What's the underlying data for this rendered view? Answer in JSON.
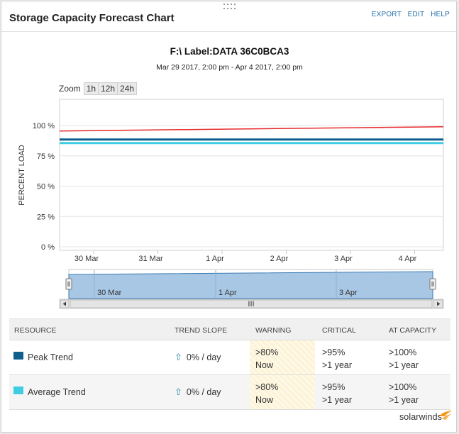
{
  "widget": {
    "title": "Storage Capacity Forecast Chart",
    "actions": [
      "EXPORT",
      "EDIT",
      "HELP"
    ]
  },
  "chart_data": {
    "type": "line",
    "title": "F:\\ Label:DATA 36C0BCA3",
    "subtitle": "Mar 29 2017, 2:00 pm - Apr 4 2017, 2:00 pm",
    "ylabel": "PERCENT LOAD",
    "yticks": [
      "100 %",
      "75 %",
      "50 %",
      "25 %",
      "0 %"
    ],
    "ylim": [
      0,
      100
    ],
    "xticks": [
      "30 Mar",
      "31 Mar",
      "1 Apr",
      "2 Apr",
      "3 Apr",
      "4 Apr"
    ],
    "grid": true,
    "series": [
      {
        "color": "#e8292b",
        "x": [
          "Mar 29 2017, 2:00 pm",
          "Apr 4 2017, 2:00 pm"
        ],
        "values": [
          95.5,
          99
        ]
      },
      {
        "name": "Peak Trend",
        "color": "#0f5f8c",
        "x": [
          "Mar 29 2017, 2:00 pm",
          "Apr 4 2017, 2:00 pm"
        ],
        "values": [
          88.5,
          88.5
        ]
      },
      {
        "name": "Average Trend",
        "color": "#3fcde4",
        "x": [
          "Mar 29 2017, 2:00 pm",
          "Apr 4 2017, 2:00 pm"
        ],
        "values": [
          85.5,
          85.5
        ]
      }
    ]
  },
  "zoom": {
    "label": "Zoom",
    "buttons": [
      "1h",
      "12h",
      "24h"
    ]
  },
  "navigator": {
    "labels": [
      "30 Mar",
      "1 Apr",
      "3 Apr"
    ],
    "scrollbar_grip": "III"
  },
  "table": {
    "headers": [
      "RESOURCE",
      "TREND SLOPE",
      "WARNING",
      "CRITICAL",
      "AT CAPACITY"
    ],
    "rows": [
      {
        "resource": "Peak Trend",
        "color": "#0f5f8c",
        "slope": "0% / day",
        "warning": [
          ">80%",
          "Now"
        ],
        "critical": [
          ">95%",
          ">1 year"
        ],
        "capacity": [
          ">100%",
          ">1 year"
        ]
      },
      {
        "resource": "Average Trend",
        "color": "#3fcde4",
        "slope": "0% / day",
        "warning": [
          ">80%",
          "Now"
        ],
        "critical": [
          ">95%",
          ">1 year"
        ],
        "capacity": [
          ">100%",
          ">1 year"
        ]
      }
    ]
  },
  "footer": {
    "brand": "solarwinds",
    "icons": {
      "slope": "up-arrow-icon",
      "brand": "solarwinds-flame-icon",
      "drag": "drag-handle-icon"
    }
  }
}
